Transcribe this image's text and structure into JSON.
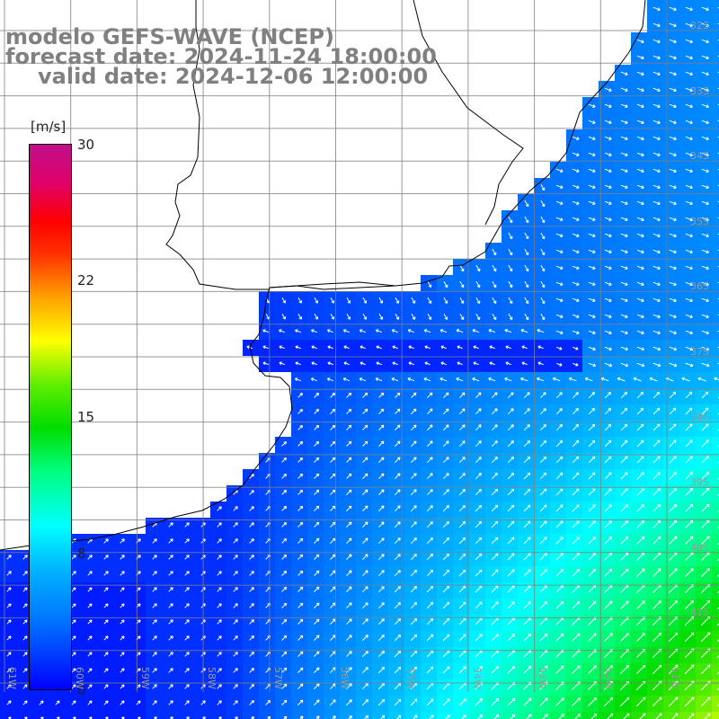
{
  "title": {
    "line1": "modelo GEFS-WAVE (NCEP)",
    "line2": "forecast date: 2024-11-24 18:00:00",
    "line3": "valid date: 2024-12-06 12:00:00"
  },
  "colorbar": {
    "units": "[m/s]",
    "ticks": [
      "30",
      "22",
      "15",
      "8",
      "0"
    ],
    "colors": [
      "#0000ff",
      "#00ffff",
      "#00dd00",
      "#ffff00",
      "#ff0000",
      "#c0108a"
    ]
  },
  "grid_labels": {
    "lat": [
      "32S",
      "33S",
      "34S",
      "35S",
      "36S",
      "37S",
      "38S",
      "39S",
      "40S",
      "41S"
    ],
    "lon": [
      "61W",
      "60W",
      "59W",
      "58W",
      "57W",
      "56W",
      "55W",
      "54W",
      "53W",
      "52W",
      "51W"
    ]
  },
  "colors": {
    "land": "#ffffff",
    "coastline": "#000000",
    "gridline": "#707070",
    "arrows": "#ffffff"
  }
}
